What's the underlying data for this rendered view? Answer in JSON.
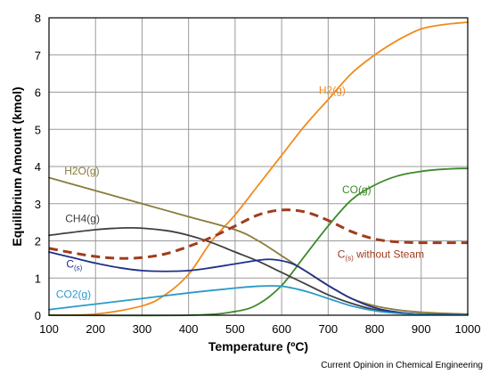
{
  "chart_data": {
    "type": "line",
    "xlabel": "Temperature (ºC)",
    "ylabel": "Equilibrium Amount (kmol)",
    "xlim": [
      100,
      1000
    ],
    "ylim": [
      0,
      8
    ],
    "xticks": [
      "100",
      "200",
      "300",
      "400",
      "500",
      "600",
      "700",
      "800",
      "900",
      "1000"
    ],
    "yticks": [
      "0",
      "1",
      "2",
      "3",
      "4",
      "5",
      "6",
      "7",
      "8"
    ],
    "grid": true,
    "source_note": "Current Opinion in Chemical Engineering",
    "series": [
      {
        "name": "H2(g)",
        "label": {
          "main": "H2(g)",
          "sub": "",
          "suffix": ""
        },
        "color": "#f28a1a",
        "dashed": false,
        "x": [
          100,
          200,
          300,
          350,
          400,
          450,
          500,
          550,
          600,
          650,
          700,
          750,
          800,
          850,
          900,
          950,
          1000
        ],
        "y": [
          0,
          0.03,
          0.25,
          0.55,
          1.1,
          2.0,
          2.7,
          3.5,
          4.3,
          5.1,
          5.8,
          6.5,
          7.0,
          7.4,
          7.7,
          7.82,
          7.88
        ]
      },
      {
        "name": "CO(g)",
        "label": {
          "main": "CO(g)",
          "sub": "",
          "suffix": ""
        },
        "color": "#3c8a2a",
        "dashed": false,
        "x": [
          100,
          400,
          500,
          550,
          600,
          650,
          700,
          750,
          800,
          850,
          900,
          950,
          1000
        ],
        "y": [
          0,
          0,
          0.1,
          0.3,
          0.8,
          1.6,
          2.4,
          3.1,
          3.5,
          3.75,
          3.87,
          3.93,
          3.95
        ]
      },
      {
        "name": "H2O(g)",
        "label": {
          "main": "H2O(g)",
          "sub": "",
          "suffix": ""
        },
        "color": "#8a7a3a",
        "dashed": false,
        "x": [
          100,
          200,
          300,
          400,
          500,
          550,
          600,
          650,
          700,
          750,
          800,
          850,
          900,
          950,
          1000
        ],
        "y": [
          3.7,
          3.35,
          3.0,
          2.65,
          2.3,
          2.0,
          1.6,
          1.2,
          0.8,
          0.45,
          0.25,
          0.14,
          0.08,
          0.05,
          0.03
        ]
      },
      {
        "name": "CH4(g)",
        "label": {
          "main": "CH4(g)",
          "sub": "",
          "suffix": ""
        },
        "color": "#404040",
        "dashed": false,
        "x": [
          100,
          200,
          280,
          350,
          400,
          450,
          500,
          550,
          600,
          650,
          700,
          750,
          800,
          850,
          900,
          950,
          1000
        ],
        "y": [
          2.15,
          2.3,
          2.35,
          2.28,
          2.15,
          1.95,
          1.7,
          1.45,
          1.15,
          0.85,
          0.55,
          0.32,
          0.15,
          0.07,
          0.03,
          0.02,
          0.01
        ]
      },
      {
        "name": "C(s)",
        "label": {
          "main": "C",
          "sub": "(s)",
          "suffix": ""
        },
        "color": "#1f2f8a",
        "dashed": false,
        "x": [
          100,
          150,
          200,
          250,
          300,
          350,
          400,
          450,
          500,
          550,
          580,
          620,
          650,
          700,
          750,
          800,
          850,
          900,
          1000
        ],
        "y": [
          1.7,
          1.55,
          1.4,
          1.28,
          1.2,
          1.18,
          1.2,
          1.28,
          1.38,
          1.48,
          1.5,
          1.4,
          1.2,
          0.8,
          0.45,
          0.2,
          0.08,
          0.03,
          0.01
        ]
      },
      {
        "name": "CO2(g)",
        "label": {
          "main": "CO2(g)",
          "sub": "",
          "suffix": ""
        },
        "color": "#2a9ac8",
        "dashed": false,
        "x": [
          100,
          200,
          300,
          400,
          500,
          550,
          600,
          650,
          700,
          750,
          800,
          850,
          900,
          950,
          1000
        ],
        "y": [
          0.15,
          0.3,
          0.45,
          0.6,
          0.73,
          0.78,
          0.78,
          0.65,
          0.45,
          0.25,
          0.12,
          0.05,
          0.02,
          0.01,
          0.01
        ]
      },
      {
        "name": "C(s) without Steam",
        "label": {
          "main": "C",
          "sub": "(s)",
          "suffix": " without Steam"
        },
        "color": "#a03c1e",
        "dashed": true,
        "x": [
          100,
          150,
          200,
          250,
          300,
          350,
          400,
          450,
          500,
          550,
          600,
          650,
          700,
          750,
          800,
          850,
          900,
          950,
          1000
        ],
        "y": [
          1.8,
          1.68,
          1.58,
          1.53,
          1.55,
          1.65,
          1.85,
          2.1,
          2.4,
          2.7,
          2.83,
          2.78,
          2.55,
          2.25,
          2.05,
          1.97,
          1.95,
          1.95,
          1.95
        ]
      }
    ]
  }
}
